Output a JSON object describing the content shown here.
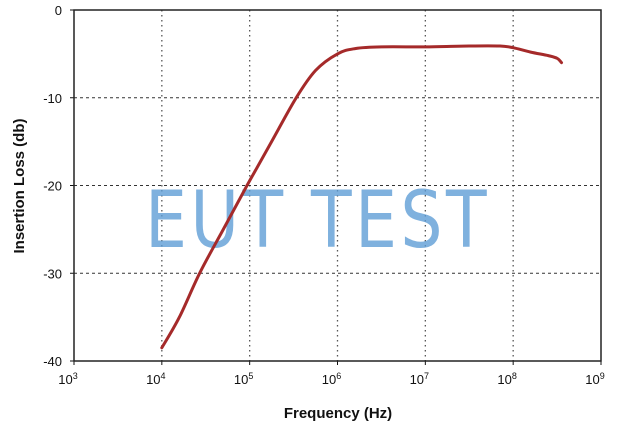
{
  "chart_data": {
    "type": "line",
    "title": "",
    "xlabel": "Frequency (Hz)",
    "ylabel": "Insertion Loss (db)",
    "xscale": "log",
    "xlim": [
      1000,
      1000000000
    ],
    "ylim": [
      -40,
      0
    ],
    "x_ticks": [
      {
        "base": "10",
        "exp": "3"
      },
      {
        "base": "10",
        "exp": "4"
      },
      {
        "base": "10",
        "exp": "5"
      },
      {
        "base": "10",
        "exp": "6"
      },
      {
        "base": "10",
        "exp": "7"
      },
      {
        "base": "10",
        "exp": "8"
      },
      {
        "base": "10",
        "exp": "9"
      }
    ],
    "y_ticks": [
      "0",
      "-10",
      "-20",
      "-30",
      "-40"
    ],
    "grid": true,
    "grid_style": "dotted",
    "legend": null,
    "series": [
      {
        "name": "Insertion Loss",
        "color": "#a52a2a",
        "log10_x": [
          4.0,
          4.2,
          4.43,
          4.7,
          4.97,
          5.25,
          5.53,
          5.75,
          6.0,
          6.2,
          6.5,
          7.0,
          7.5,
          7.85,
          8.0,
          8.2,
          8.4,
          8.5,
          8.55
        ],
        "values": [
          -38.5,
          -35.0,
          -30.0,
          -25.0,
          -20.0,
          -15.0,
          -10.0,
          -6.9,
          -5.0,
          -4.4,
          -4.2,
          -4.2,
          -4.1,
          -4.1,
          -4.3,
          -4.8,
          -5.2,
          -5.5,
          -6.0
        ]
      }
    ],
    "annotations": [
      "EUT TEST"
    ]
  },
  "watermark": {
    "text": "EUT TEST",
    "color": "#5b9bd5"
  }
}
